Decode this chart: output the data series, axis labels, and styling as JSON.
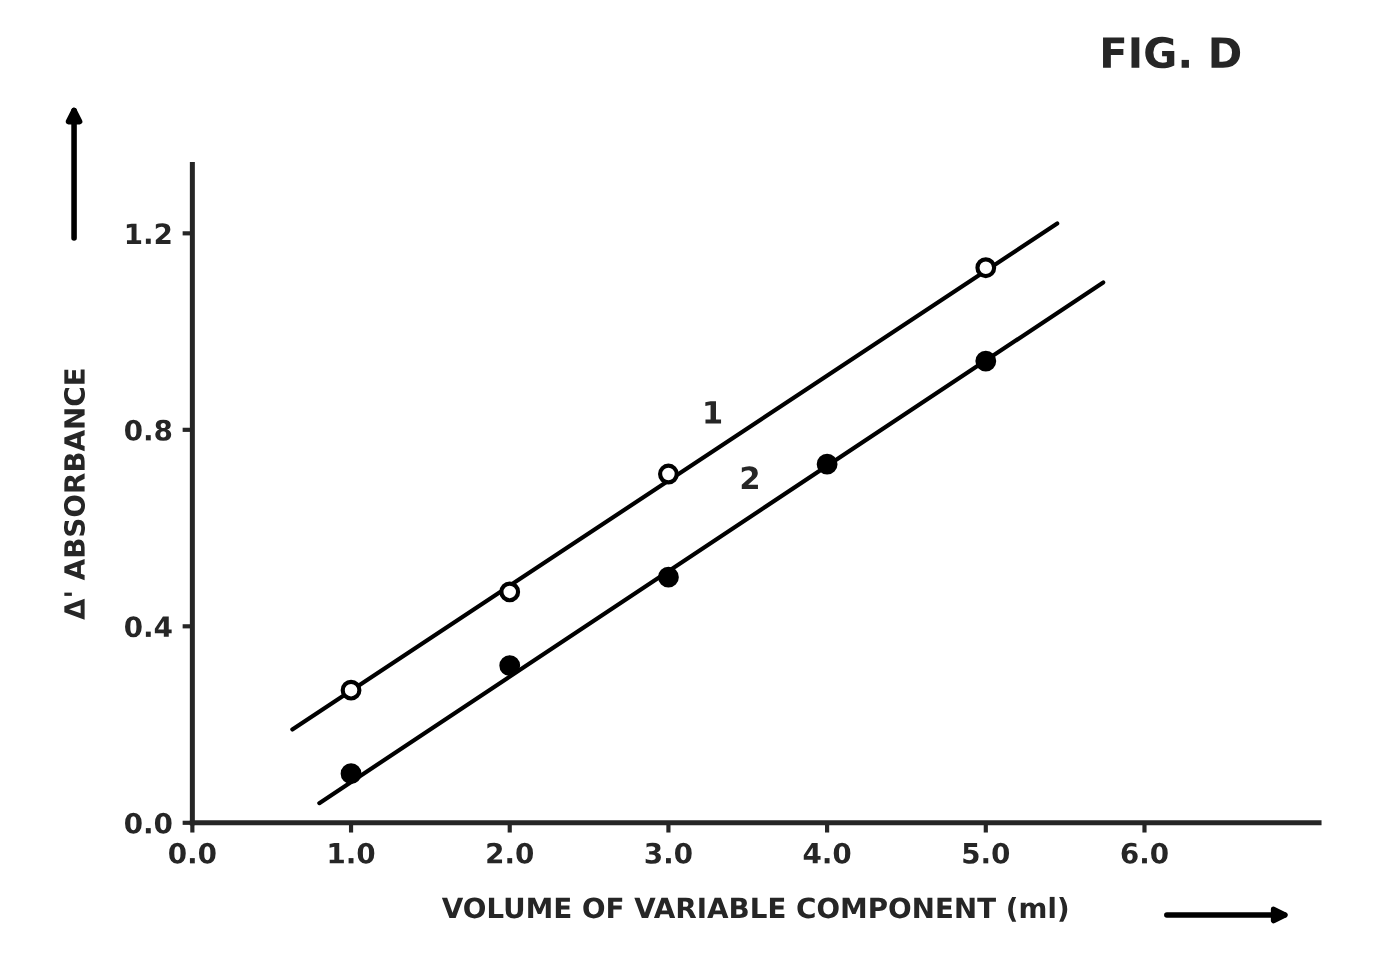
{
  "chart_data": {
    "type": "scatter",
    "title": "FIG. D",
    "xlabel": "VOLUME OF VARIABLE COMPONENT (ml)",
    "ylabel": "Δ' ABSORBANCE",
    "series": [
      {
        "color": "#ffffff",
        "marker": "circle",
        "x": [
          1.0,
          2.0,
          3.0,
          5.0
        ],
        "values": [
          0.27,
          0.47,
          0.71,
          1.13
        ]
      },
      {
        "color": "#000000",
        "marker": "circle",
        "x": [
          1.0,
          2.0,
          3.0,
          4.0,
          5.0
        ],
        "values": [
          0.1,
          0.32,
          0.5,
          0.73,
          0.94
        ]
      },
      {
        "type": "line",
        "name": "1",
        "color": "#000000",
        "marker": "none",
        "x": [
          0.63,
          5.45
        ],
        "values": [
          0.19,
          1.22
        ]
      },
      {
        "type": "line",
        "name": "2",
        "color": "#000000",
        "marker": "none",
        "x": [
          0.8,
          5.74
        ],
        "values": [
          0.04,
          1.1
        ]
      }
    ],
    "xlim": [
      0,
      7.1
    ],
    "ylim": [
      0,
      1.34
    ],
    "xticks": [
      {
        "value": 0,
        "label": "0.0"
      },
      {
        "value": 1,
        "label": "1.0"
      },
      {
        "value": 2,
        "label": "2.0"
      },
      {
        "value": 3,
        "label": "3.0"
      },
      {
        "value": 4,
        "label": "4.0"
      },
      {
        "value": 5,
        "label": "5.0"
      },
      {
        "value": 6,
        "label": "6.0"
      }
    ],
    "yticks": [
      {
        "value": 0,
        "label": "0.0"
      },
      {
        "value": 0.4,
        "label": "0.4"
      },
      {
        "value": 0.8,
        "label": "0.8"
      },
      {
        "value": 1.2,
        "label": "1.2"
      }
    ],
    "line_style": "solid",
    "grid": false,
    "legend": false
  }
}
